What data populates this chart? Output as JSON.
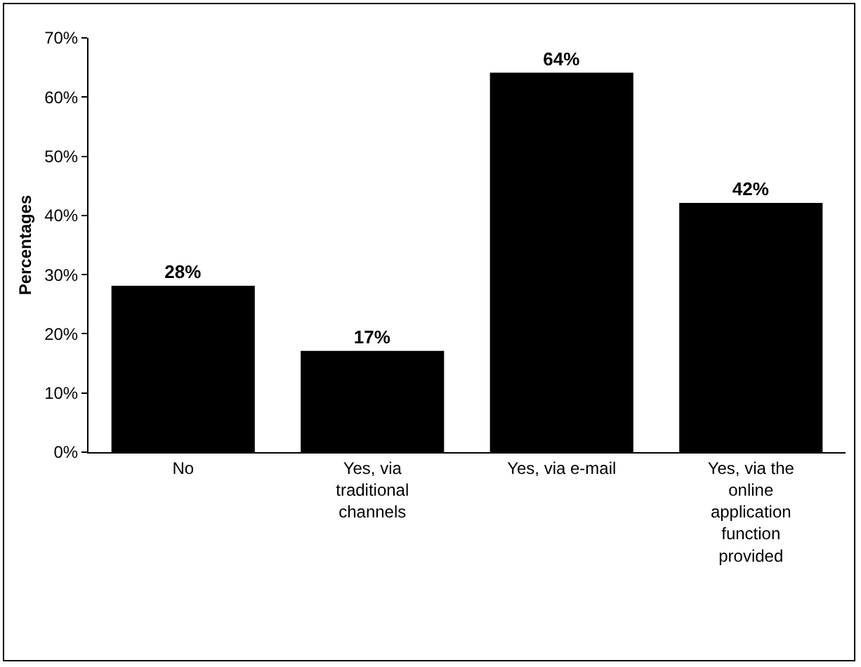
{
  "chart_data": {
    "type": "bar",
    "ylabel": "Percentages",
    "categories": [
      "No",
      "Yes, via traditional channels",
      "Yes, via e-mail",
      "Yes, via the online application function provided"
    ],
    "values": [
      28,
      17,
      64,
      42
    ],
    "value_labels": [
      "28%",
      "17%",
      "64%",
      "42%"
    ],
    "color": "#000000",
    "ylim": [
      0,
      70
    ],
    "yticks": [
      {
        "value": 0,
        "label": "0%"
      },
      {
        "value": 10,
        "label": "10%"
      },
      {
        "value": 20,
        "label": "20%"
      },
      {
        "value": 30,
        "label": "30%"
      },
      {
        "value": 40,
        "label": "40%"
      },
      {
        "value": 50,
        "label": "50%"
      },
      {
        "value": 60,
        "label": "60%"
      },
      {
        "value": 70,
        "label": "70%"
      }
    ],
    "grid": false
  }
}
